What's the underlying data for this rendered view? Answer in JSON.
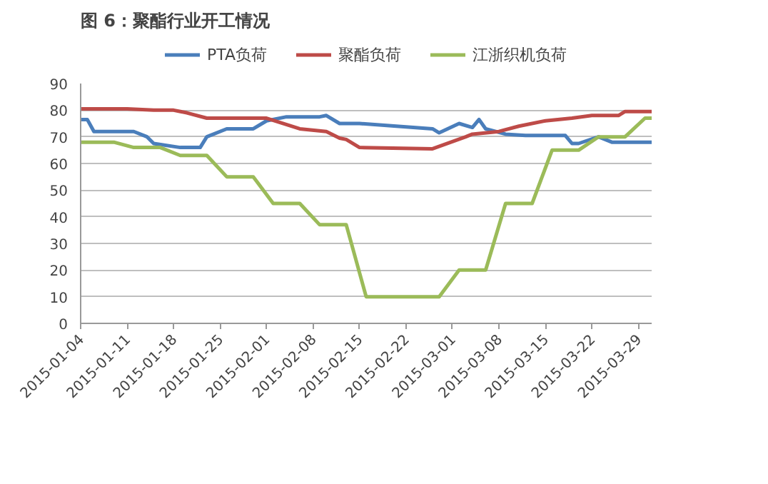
{
  "chart_data": {
    "type": "line",
    "title": "图 6：聚酯行业开工情况",
    "xlim": [
      "2015-01-04",
      "2015-03-31"
    ],
    "xticks": [
      "2015-01-04",
      "2015-01-11",
      "2015-01-18",
      "2015-01-25",
      "2015-02-01",
      "2015-02-08",
      "2015-02-15",
      "2015-02-22",
      "2015-03-01",
      "2015-03-08",
      "2015-03-15",
      "2015-03-22",
      "2015-03-29"
    ],
    "ylim": [
      0,
      90
    ],
    "yticks": [
      0,
      10,
      20,
      30,
      40,
      50,
      60,
      70,
      80,
      90
    ],
    "grid": "y",
    "legend": "top",
    "marker": "none",
    "line_style": "solid",
    "series": [
      {
        "name": "PTA负荷",
        "color": "#4a7ebb",
        "x": [
          "2015-01-04",
          "2015-01-05",
          "2015-01-06",
          "2015-01-12",
          "2015-01-14",
          "2015-01-15",
          "2015-01-19",
          "2015-01-22",
          "2015-01-23",
          "2015-01-26",
          "2015-01-30",
          "2015-02-01",
          "2015-02-04",
          "2015-02-09",
          "2015-02-10",
          "2015-02-12",
          "2015-02-15",
          "2015-02-26",
          "2015-02-27",
          "2015-03-02",
          "2015-03-04",
          "2015-03-05",
          "2015-03-06",
          "2015-03-09",
          "2015-03-12",
          "2015-03-18",
          "2015-03-19",
          "2015-03-20",
          "2015-03-23",
          "2015-03-25",
          "2015-03-31"
        ],
        "values": [
          76.5,
          76.5,
          72,
          72,
          70,
          67.5,
          66,
          66,
          70,
          73,
          73,
          76,
          77.5,
          77.5,
          78,
          75,
          75,
          73,
          71.5,
          75,
          73.5,
          76.5,
          73,
          71,
          70.5,
          70.5,
          67.5,
          67.5,
          70,
          68,
          68
        ]
      },
      {
        "name": "聚酯负荷",
        "color": "#be4b48",
        "x": [
          "2015-01-04",
          "2015-01-11",
          "2015-01-15",
          "2015-01-18",
          "2015-01-20",
          "2015-01-23",
          "2015-02-01",
          "2015-02-06",
          "2015-02-10",
          "2015-02-12",
          "2015-02-13",
          "2015-02-15",
          "2015-02-26",
          "2015-03-03",
          "2015-03-04",
          "2015-03-08",
          "2015-03-11",
          "2015-03-15",
          "2015-03-19",
          "2015-03-22",
          "2015-03-26",
          "2015-03-27",
          "2015-03-31"
        ],
        "values": [
          80.5,
          80.5,
          80,
          80,
          79,
          77,
          77,
          73,
          72,
          69.5,
          69,
          66,
          65.5,
          70,
          71,
          72,
          74,
          76,
          77,
          78,
          78,
          79.5,
          79.5
        ]
      },
      {
        "name": "江浙织机负荷",
        "color": "#9bbb59",
        "x": [
          "2015-01-04",
          "2015-01-09",
          "2015-01-12",
          "2015-01-16",
          "2015-01-19",
          "2015-01-23",
          "2015-01-26",
          "2015-01-30",
          "2015-02-02",
          "2015-02-06",
          "2015-02-09",
          "2015-02-13",
          "2015-02-16",
          "2015-02-27",
          "2015-03-02",
          "2015-03-06",
          "2015-03-09",
          "2015-03-13",
          "2015-03-16",
          "2015-03-20",
          "2015-03-23",
          "2015-03-27",
          "2015-03-30",
          "2015-03-31"
        ],
        "values": [
          68,
          68,
          66,
          66,
          63,
          63,
          55,
          55,
          45,
          45,
          37,
          37,
          10,
          10,
          20,
          20,
          45,
          45,
          65,
          65,
          70,
          70,
          77,
          77
        ]
      }
    ]
  }
}
